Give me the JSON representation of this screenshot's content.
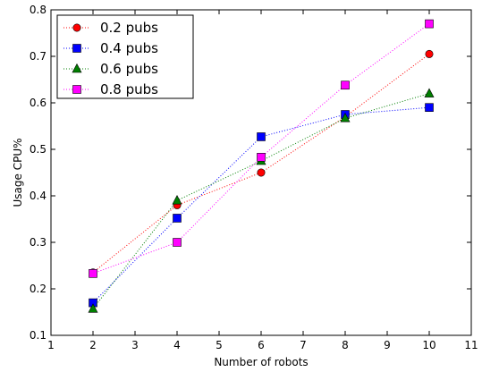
{
  "chart_data": {
    "type": "line",
    "title": "",
    "xlabel": "Number of robots",
    "ylabel": "Usage CPU%",
    "xlim": [
      1,
      11
    ],
    "ylim": [
      0.1,
      0.8
    ],
    "x_ticks": [
      "1",
      "2",
      "3",
      "4",
      "5",
      "6",
      "7",
      "8",
      "9",
      "10",
      "11"
    ],
    "y_ticks": [
      "0.1",
      "0.2",
      "0.3",
      "0.4",
      "0.5",
      "0.6",
      "0.7",
      "0.8"
    ],
    "grid": false,
    "legend_position": "top-left",
    "x": [
      2,
      4,
      6,
      8,
      10
    ],
    "series": [
      {
        "name": "0.2 pubs",
        "values": [
          0.235,
          0.38,
          0.45,
          0.57,
          0.705
        ],
        "color": "#ff0000",
        "marker": "circle"
      },
      {
        "name": "0.4 pubs",
        "values": [
          0.17,
          0.352,
          0.527,
          0.575,
          0.59
        ],
        "color": "#0000ff",
        "marker": "square"
      },
      {
        "name": "0.6 pubs",
        "values": [
          0.157,
          0.39,
          0.475,
          0.567,
          0.62
        ],
        "color": "#007f00",
        "marker": "triangle"
      },
      {
        "name": "0.8 pubs",
        "values": [
          0.233,
          0.3,
          0.483,
          0.638,
          0.77
        ],
        "color": "#ff00ff",
        "marker": "square"
      }
    ]
  }
}
